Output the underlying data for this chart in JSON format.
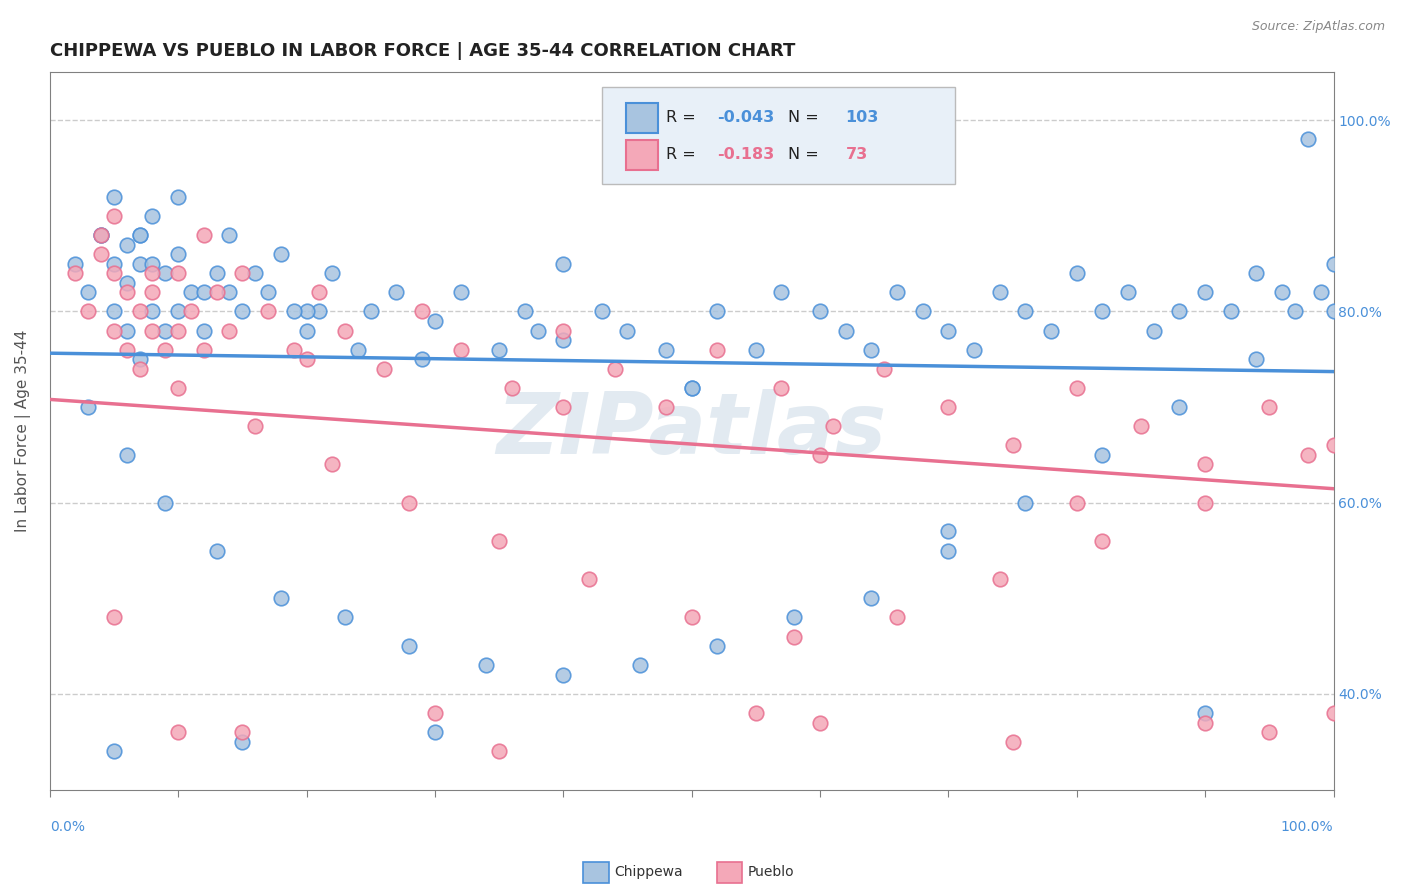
{
  "title": "CHIPPEWA VS PUEBLO IN LABOR FORCE | AGE 35-44 CORRELATION CHART",
  "source": "Source: ZipAtlas.com",
  "ylabel": "In Labor Force | Age 35-44",
  "ytick_values": [
    0.4,
    0.6,
    0.8,
    1.0
  ],
  "chippewa_R": -0.043,
  "chippewa_N": 103,
  "pueblo_R": -0.183,
  "pueblo_N": 73,
  "chippewa_color": "#a8c4e0",
  "pueblo_color": "#f4a8b8",
  "chippewa_line_color": "#4a90d9",
  "pueblo_line_color": "#e87090",
  "background_color": "#ffffff",
  "grid_color": "#cccccc",
  "watermark_color": "#d0dde8",
  "legend_box_color": "#e8f0f8",
  "title_fontsize": 13,
  "axis_label_fontsize": 11,
  "tick_fontsize": 10,
  "xlim": [
    0.0,
    1.0
  ],
  "ylim": [
    0.3,
    1.05
  ],
  "chippewa_x": [
    0.02,
    0.03,
    0.04,
    0.05,
    0.05,
    0.05,
    0.06,
    0.06,
    0.07,
    0.07,
    0.08,
    0.08,
    0.09,
    0.1,
    0.1,
    0.11,
    0.12,
    0.13,
    0.14,
    0.15,
    0.17,
    0.18,
    0.2,
    0.21,
    0.22,
    0.24,
    0.25,
    0.27,
    0.29,
    0.3,
    0.32,
    0.35,
    0.37,
    0.38,
    0.4,
    0.43,
    0.45,
    0.48,
    0.5,
    0.52,
    0.55,
    0.57,
    0.6,
    0.62,
    0.64,
    0.66,
    0.68,
    0.7,
    0.72,
    0.74,
    0.76,
    0.78,
    0.8,
    0.82,
    0.84,
    0.86,
    0.88,
    0.9,
    0.92,
    0.94,
    0.96,
    0.97,
    0.98,
    0.99,
    1.0,
    0.03,
    0.06,
    0.09,
    0.13,
    0.18,
    0.23,
    0.28,
    0.34,
    0.4,
    0.46,
    0.52,
    0.58,
    0.64,
    0.7,
    0.76,
    0.82,
    0.88,
    0.94,
    1.0,
    0.07,
    0.15,
    0.3,
    0.5,
    0.7,
    0.9,
    0.05,
    0.2,
    0.4,
    0.04,
    0.06,
    0.07,
    0.08,
    0.09,
    0.1,
    0.12,
    0.14,
    0.16,
    0.19
  ],
  "chippewa_y": [
    0.85,
    0.82,
    0.88,
    0.8,
    0.85,
    0.92,
    0.78,
    0.87,
    0.75,
    0.88,
    0.8,
    0.9,
    0.78,
    0.8,
    0.92,
    0.82,
    0.78,
    0.84,
    0.82,
    0.8,
    0.82,
    0.86,
    0.78,
    0.8,
    0.84,
    0.76,
    0.8,
    0.82,
    0.75,
    0.79,
    0.82,
    0.76,
    0.8,
    0.78,
    0.77,
    0.8,
    0.78,
    0.76,
    0.72,
    0.8,
    0.76,
    0.82,
    0.8,
    0.78,
    0.76,
    0.82,
    0.8,
    0.78,
    0.76,
    0.82,
    0.8,
    0.78,
    0.84,
    0.8,
    0.82,
    0.78,
    0.8,
    0.82,
    0.8,
    0.84,
    0.82,
    0.8,
    0.98,
    0.82,
    0.85,
    0.7,
    0.65,
    0.6,
    0.55,
    0.5,
    0.48,
    0.45,
    0.43,
    0.42,
    0.43,
    0.45,
    0.48,
    0.5,
    0.55,
    0.6,
    0.65,
    0.7,
    0.75,
    0.8,
    0.85,
    0.35,
    0.36,
    0.72,
    0.57,
    0.38,
    0.34,
    0.8,
    0.85,
    0.88,
    0.83,
    0.88,
    0.85,
    0.84,
    0.86,
    0.82,
    0.88,
    0.84,
    0.8
  ],
  "pueblo_x": [
    0.02,
    0.03,
    0.04,
    0.04,
    0.05,
    0.05,
    0.06,
    0.06,
    0.07,
    0.07,
    0.08,
    0.08,
    0.09,
    0.1,
    0.1,
    0.11,
    0.12,
    0.13,
    0.14,
    0.15,
    0.17,
    0.19,
    0.21,
    0.23,
    0.26,
    0.29,
    0.32,
    0.36,
    0.4,
    0.44,
    0.48,
    0.52,
    0.57,
    0.61,
    0.65,
    0.7,
    0.75,
    0.8,
    0.85,
    0.9,
    0.95,
    1.0,
    0.05,
    0.1,
    0.16,
    0.22,
    0.28,
    0.35,
    0.42,
    0.5,
    0.58,
    0.66,
    0.74,
    0.82,
    0.9,
    0.98,
    0.08,
    0.2,
    0.4,
    0.6,
    0.8,
    1.0,
    0.1,
    0.3,
    0.6,
    0.9,
    0.05,
    0.15,
    0.35,
    0.55,
    0.75,
    0.95,
    0.12
  ],
  "pueblo_y": [
    0.84,
    0.8,
    0.86,
    0.88,
    0.78,
    0.84,
    0.76,
    0.82,
    0.74,
    0.8,
    0.78,
    0.84,
    0.76,
    0.78,
    0.84,
    0.8,
    0.76,
    0.82,
    0.78,
    0.84,
    0.8,
    0.76,
    0.82,
    0.78,
    0.74,
    0.8,
    0.76,
    0.72,
    0.78,
    0.74,
    0.7,
    0.76,
    0.72,
    0.68,
    0.74,
    0.7,
    0.66,
    0.72,
    0.68,
    0.64,
    0.7,
    0.66,
    0.9,
    0.72,
    0.68,
    0.64,
    0.6,
    0.56,
    0.52,
    0.48,
    0.46,
    0.48,
    0.52,
    0.56,
    0.6,
    0.65,
    0.82,
    0.75,
    0.7,
    0.65,
    0.6,
    0.38,
    0.36,
    0.38,
    0.37,
    0.37,
    0.48,
    0.36,
    0.34,
    0.38,
    0.35,
    0.36,
    0.88
  ]
}
